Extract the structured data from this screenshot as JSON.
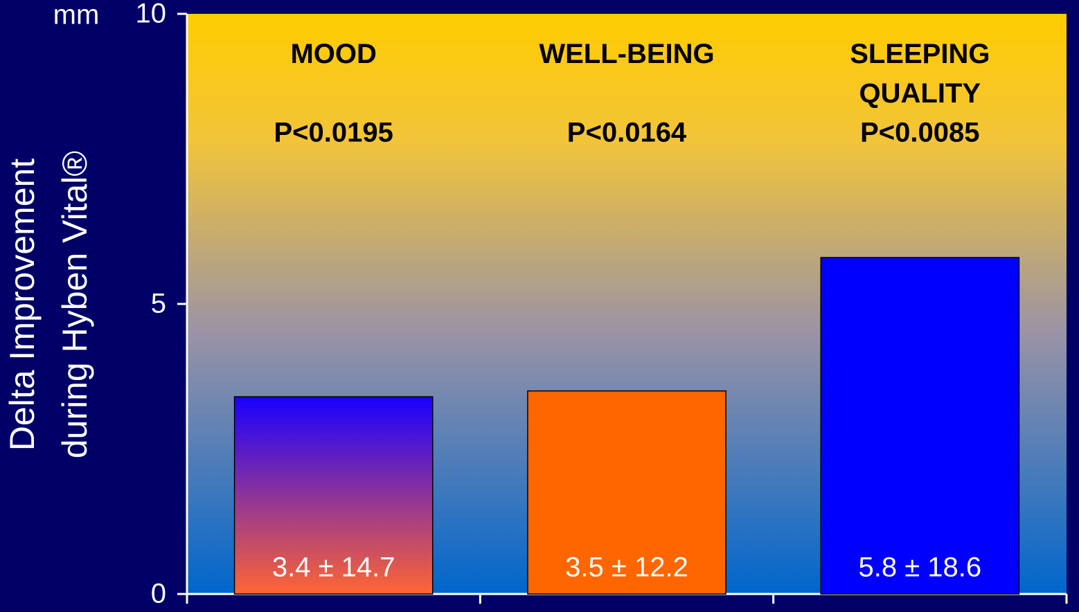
{
  "chart_data": {
    "type": "bar",
    "y_axis_label": [
      "Delta Improvement",
      "during Hyben Vital®"
    ],
    "y_unit": "mm",
    "categories": [
      "MOOD",
      "WELL-BEING",
      "SLEEPING QUALITY"
    ],
    "annotations": [
      "P<0.0195",
      "P<0.0164",
      "P<0.0085"
    ],
    "values": [
      3.4,
      3.5,
      5.8
    ],
    "value_labels": [
      "3.4 ± 14.7",
      "3.5 ± 12.2",
      "5.8 ± 18.6"
    ],
    "colors": [
      [
        "#1a00ff",
        "#ff6633"
      ],
      "#ff6600",
      "#0000ff"
    ],
    "ylim": [
      0,
      10
    ],
    "yticks": [
      0,
      5,
      10
    ]
  }
}
